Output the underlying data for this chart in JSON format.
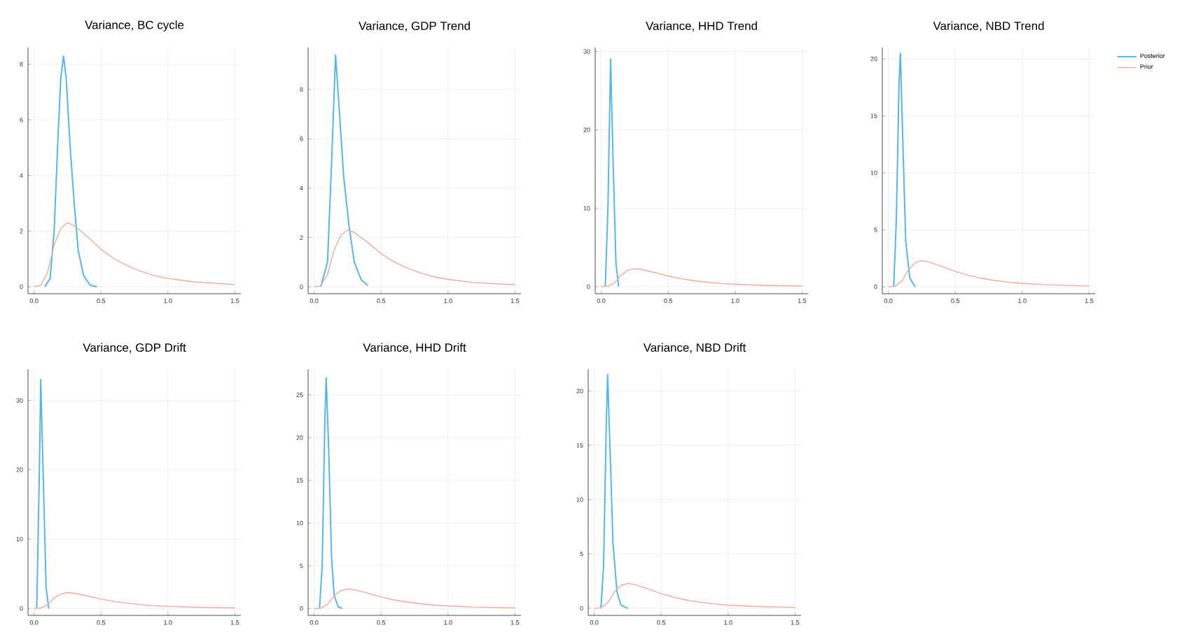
{
  "chart_data": [
    {
      "type": "line",
      "title": "Variance, BC cycle",
      "xlim": [
        -0.045,
        1.545
      ],
      "ylim": [
        -0.25,
        8.6
      ],
      "grid": true,
      "legend": false,
      "xticks": [
        {
          "value": 0,
          "label": "0.0"
        },
        {
          "value": 0.5,
          "label": "0.5"
        },
        {
          "value": 1,
          "label": "1.0"
        },
        {
          "value": 1.5,
          "label": "1.5"
        }
      ],
      "yticks": [
        0,
        2,
        4,
        6,
        8
      ],
      "series": [
        {
          "color": "#52b8ea",
          "x": [
            0.08,
            0.12,
            0.15,
            0.18,
            0.2,
            0.22,
            0.24,
            0.27,
            0.3,
            0.33,
            0.37,
            0.42,
            0.47
          ],
          "values": [
            0,
            0.3,
            2,
            5.5,
            7.5,
            8.3,
            7.5,
            5,
            3,
            1.3,
            0.4,
            0.05,
            0
          ]
        },
        {
          "color": "#f4a99a",
          "x": [
            0,
            0.05,
            0.1,
            0.15,
            0.2,
            0.25,
            0.3,
            0.4,
            0.5,
            0.6,
            0.7,
            0.8,
            0.9,
            1.0,
            1.2,
            1.5
          ],
          "values": [
            0,
            0.05,
            0.5,
            1.5,
            2.1,
            2.3,
            2.2,
            1.8,
            1.35,
            1.0,
            0.75,
            0.55,
            0.4,
            0.3,
            0.17,
            0.08
          ]
        }
      ]
    },
    {
      "type": "line",
      "title": "Variance, GDP Trend",
      "xlim": [
        -0.045,
        1.545
      ],
      "ylim": [
        -0.28,
        9.7
      ],
      "grid": true,
      "legend": false,
      "xticks": [
        {
          "value": 0,
          "label": "0.0"
        },
        {
          "value": 0.5,
          "label": "0.5"
        },
        {
          "value": 1,
          "label": "1.0"
        },
        {
          "value": 1.5,
          "label": "1.5"
        }
      ],
      "yticks": [
        0,
        2,
        4,
        6,
        8
      ],
      "series": [
        {
          "color": "#52b8ea",
          "x": [
            0.05,
            0.1,
            0.13,
            0.16,
            0.19,
            0.22,
            0.26,
            0.3,
            0.35,
            0.4
          ],
          "values": [
            0,
            1,
            5,
            9.4,
            7,
            4.5,
            2.5,
            1.0,
            0.3,
            0.05
          ]
        },
        {
          "color": "#f4a99a",
          "x": [
            0,
            0.05,
            0.1,
            0.15,
            0.2,
            0.25,
            0.3,
            0.4,
            0.5,
            0.6,
            0.7,
            0.8,
            0.9,
            1.0,
            1.2,
            1.5
          ],
          "values": [
            0,
            0.05,
            0.5,
            1.5,
            2.1,
            2.3,
            2.2,
            1.8,
            1.35,
            1.0,
            0.75,
            0.55,
            0.4,
            0.3,
            0.17,
            0.08
          ]
        }
      ]
    },
    {
      "type": "line",
      "title": "Variance, HHD Trend",
      "xlim": [
        -0.045,
        1.545
      ],
      "ylim": [
        -0.9,
        30.5
      ],
      "grid": true,
      "legend": false,
      "xticks": [
        {
          "value": 0,
          "label": "0.0"
        },
        {
          "value": 0.5,
          "label": "0.5"
        },
        {
          "value": 1,
          "label": "1.0"
        },
        {
          "value": 1.5,
          "label": "1.5"
        }
      ],
      "yticks": [
        0,
        10,
        20,
        30
      ],
      "series": [
        {
          "color": "#52b8ea",
          "x": [
            0.03,
            0.05,
            0.07,
            0.09,
            0.11,
            0.13
          ],
          "values": [
            0,
            10,
            29,
            15,
            3,
            0
          ]
        },
        {
          "color": "#f4a99a",
          "x": [
            0,
            0.05,
            0.1,
            0.15,
            0.2,
            0.25,
            0.3,
            0.4,
            0.5,
            0.6,
            0.7,
            0.8,
            0.9,
            1.0,
            1.2,
            1.5
          ],
          "values": [
            0,
            0.05,
            0.5,
            1.5,
            2.1,
            2.3,
            2.2,
            1.8,
            1.35,
            1.0,
            0.75,
            0.55,
            0.4,
            0.3,
            0.17,
            0.08
          ]
        }
      ]
    },
    {
      "type": "line",
      "title": "Variance, NBD Trend",
      "xlim": [
        -0.045,
        1.545
      ],
      "ylim": [
        -0.6,
        21
      ],
      "grid": true,
      "legend": "top right",
      "xticks": [
        {
          "value": 0,
          "label": "0.0"
        },
        {
          "value": 0.5,
          "label": "0.5"
        },
        {
          "value": 1,
          "label": "1.0"
        },
        {
          "value": 1.5,
          "label": "1.5"
        }
      ],
      "yticks": [
        0,
        5,
        10,
        15,
        20
      ],
      "series": [
        {
          "name": "Posterior",
          "color": "#52b8ea",
          "x": [
            0.04,
            0.06,
            0.08,
            0.09,
            0.11,
            0.13,
            0.16,
            0.2
          ],
          "values": [
            0,
            6,
            18,
            20.5,
            12,
            4,
            0.8,
            0
          ]
        },
        {
          "name": "Prior",
          "color": "#f4a99a",
          "x": [
            0,
            0.05,
            0.1,
            0.15,
            0.2,
            0.25,
            0.3,
            0.4,
            0.5,
            0.6,
            0.7,
            0.8,
            0.9,
            1.0,
            1.2,
            1.5
          ],
          "values": [
            0,
            0.05,
            0.5,
            1.5,
            2.1,
            2.3,
            2.2,
            1.8,
            1.35,
            1.0,
            0.75,
            0.55,
            0.4,
            0.3,
            0.17,
            0.08
          ]
        }
      ]
    },
    {
      "type": "line",
      "title": "Variance, GDP Drift",
      "xlim": [
        -0.045,
        1.545
      ],
      "ylim": [
        -1,
        34.5
      ],
      "grid": true,
      "legend": false,
      "xticks": [
        {
          "value": 0,
          "label": "0.0"
        },
        {
          "value": 0.5,
          "label": "0.5"
        },
        {
          "value": 1,
          "label": "1.0"
        },
        {
          "value": 1.5,
          "label": "1.5"
        }
      ],
      "yticks": [
        0,
        10,
        20,
        30
      ],
      "series": [
        {
          "color": "#52b8ea",
          "x": [
            0.02,
            0.04,
            0.05,
            0.07,
            0.09,
            0.11
          ],
          "values": [
            0,
            20,
            33,
            18,
            3,
            0
          ]
        },
        {
          "color": "#f4a99a",
          "x": [
            0,
            0.05,
            0.1,
            0.15,
            0.2,
            0.25,
            0.3,
            0.4,
            0.5,
            0.6,
            0.7,
            0.8,
            0.9,
            1.0,
            1.2,
            1.5
          ],
          "values": [
            0,
            0.05,
            0.5,
            1.5,
            2.1,
            2.3,
            2.2,
            1.8,
            1.35,
            1.0,
            0.75,
            0.55,
            0.4,
            0.3,
            0.17,
            0.08
          ]
        }
      ]
    },
    {
      "type": "line",
      "title": "Variance, HHD Drift",
      "xlim": [
        -0.045,
        1.545
      ],
      "ylim": [
        -0.8,
        28
      ],
      "grid": true,
      "legend": false,
      "xticks": [
        {
          "value": 0,
          "label": "0.0"
        },
        {
          "value": 0.5,
          "label": "0.5"
        },
        {
          "value": 1,
          "label": "1.0"
        },
        {
          "value": 1.5,
          "label": "1.5"
        }
      ],
      "yticks": [
        0,
        5,
        10,
        15,
        20,
        25
      ],
      "series": [
        {
          "color": "#52b8ea",
          "x": [
            0.04,
            0.06,
            0.08,
            0.09,
            0.11,
            0.13,
            0.15,
            0.18,
            0.21
          ],
          "values": [
            0,
            5,
            22,
            27,
            18,
            6,
            1.5,
            0.2,
            0
          ]
        },
        {
          "color": "#f4a99a",
          "x": [
            0,
            0.05,
            0.1,
            0.15,
            0.2,
            0.25,
            0.3,
            0.4,
            0.5,
            0.6,
            0.7,
            0.8,
            0.9,
            1.0,
            1.2,
            1.5
          ],
          "values": [
            0,
            0.05,
            0.5,
            1.5,
            2.1,
            2.3,
            2.2,
            1.8,
            1.35,
            1.0,
            0.75,
            0.55,
            0.4,
            0.3,
            0.17,
            0.08
          ]
        }
      ]
    },
    {
      "type": "line",
      "title": "Variance, NBD Drift",
      "xlim": [
        -0.045,
        1.545
      ],
      "ylim": [
        -0.65,
        22
      ],
      "grid": true,
      "legend": false,
      "xticks": [
        {
          "value": 0,
          "label": "0.0"
        },
        {
          "value": 0.5,
          "label": "0.5"
        },
        {
          "value": 1,
          "label": "1.0"
        },
        {
          "value": 1.5,
          "label": "1.5"
        }
      ],
      "yticks": [
        0,
        5,
        10,
        15,
        20
      ],
      "series": [
        {
          "color": "#52b8ea",
          "x": [
            0.05,
            0.07,
            0.09,
            0.1,
            0.12,
            0.14,
            0.17,
            0.2,
            0.25
          ],
          "values": [
            0,
            4,
            17,
            21.5,
            14,
            6,
            1.5,
            0.3,
            0
          ]
        },
        {
          "color": "#f4a99a",
          "x": [
            0,
            0.05,
            0.1,
            0.15,
            0.2,
            0.25,
            0.3,
            0.4,
            0.5,
            0.6,
            0.7,
            0.8,
            0.9,
            1.0,
            1.2,
            1.5
          ],
          "values": [
            0,
            0.05,
            0.5,
            1.5,
            2.1,
            2.3,
            2.2,
            1.8,
            1.35,
            1.0,
            0.75,
            0.55,
            0.4,
            0.3,
            0.17,
            0.08
          ]
        }
      ]
    }
  ]
}
